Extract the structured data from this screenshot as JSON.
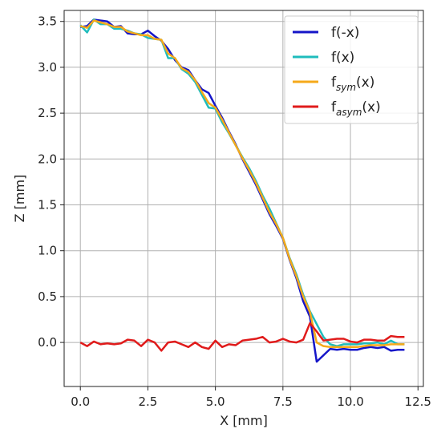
{
  "chart_data": {
    "type": "line",
    "title": "",
    "xlabel": "X [mm]",
    "ylabel": "Z [mm]",
    "xlim": [
      -0.6,
      12.7
    ],
    "ylim": [
      -0.48,
      3.62
    ],
    "xticks": [
      0.0,
      2.5,
      5.0,
      7.5,
      10.0,
      12.5
    ],
    "xtick_labels": [
      "0.0",
      "2.5",
      "5.0",
      "7.5",
      "10.0",
      "12.5"
    ],
    "yticks": [
      0.0,
      0.5,
      1.0,
      1.5,
      2.0,
      2.5,
      3.0,
      3.5
    ],
    "ytick_labels": [
      "0.0",
      "0.5",
      "1.0",
      "1.5",
      "2.0",
      "2.5",
      "3.0",
      "3.5"
    ],
    "grid": true,
    "legend_position": "top-right",
    "colors": {
      "f_minus_x": "#1515c8",
      "f_x": "#1fbcbc",
      "f_sym": "#f5a91a",
      "f_asym": "#e01b1b"
    },
    "legend": [
      {
        "key": "f_minus_x",
        "base": "f(-x)",
        "sub": "",
        "tail": ""
      },
      {
        "key": "f_x",
        "base": "f(x)",
        "sub": "",
        "tail": ""
      },
      {
        "key": "f_sym",
        "base": "f",
        "sub": "sym",
        "tail": "(x)"
      },
      {
        "key": "f_asym",
        "base": "f",
        "sub": "asym",
        "tail": "(x)"
      }
    ],
    "x": [
      0.0,
      0.25,
      0.5,
      0.75,
      1.0,
      1.25,
      1.5,
      1.75,
      2.0,
      2.25,
      2.5,
      2.75,
      3.0,
      3.25,
      3.5,
      3.75,
      4.0,
      4.25,
      4.5,
      4.75,
      5.0,
      5.25,
      5.5,
      5.75,
      6.0,
      6.25,
      6.5,
      6.75,
      7.0,
      7.25,
      7.5,
      7.75,
      8.0,
      8.25,
      8.5,
      8.75,
      9.0,
      9.25,
      9.5,
      9.75,
      10.0,
      10.25,
      10.5,
      10.75,
      11.0,
      11.25,
      11.5,
      11.75,
      12.0
    ],
    "series": [
      {
        "key": "f_minus_x",
        "values": [
          3.44,
          3.45,
          3.52,
          3.51,
          3.5,
          3.44,
          3.45,
          3.37,
          3.36,
          3.36,
          3.4,
          3.34,
          3.29,
          3.2,
          3.08,
          3.0,
          2.97,
          2.86,
          2.76,
          2.72,
          2.58,
          2.45,
          2.3,
          2.16,
          2.0,
          1.86,
          1.72,
          1.56,
          1.4,
          1.27,
          1.13,
          0.9,
          0.7,
          0.45,
          0.28,
          -0.21,
          -0.14,
          -0.07,
          -0.08,
          -0.07,
          -0.08,
          -0.08,
          -0.06,
          -0.05,
          -0.06,
          -0.05,
          -0.09,
          -0.08,
          -0.08
        ]
      },
      {
        "key": "f_x",
        "values": [
          3.46,
          3.38,
          3.52,
          3.47,
          3.47,
          3.42,
          3.42,
          3.4,
          3.37,
          3.36,
          3.32,
          3.31,
          3.3,
          3.1,
          3.1,
          2.98,
          2.93,
          2.84,
          2.7,
          2.56,
          2.55,
          2.4,
          2.28,
          2.15,
          2.02,
          1.9,
          1.76,
          1.6,
          1.46,
          1.3,
          1.14,
          0.92,
          0.74,
          0.52,
          0.34,
          0.2,
          0.06,
          -0.02,
          -0.04,
          -0.02,
          -0.02,
          -0.02,
          -0.01,
          -0.01,
          0.0,
          -0.02,
          0.02,
          -0.02,
          -0.02
        ]
      },
      {
        "key": "f_sym",
        "values": [
          3.45,
          3.43,
          3.51,
          3.49,
          3.47,
          3.44,
          3.44,
          3.39,
          3.37,
          3.35,
          3.35,
          3.31,
          3.3,
          3.15,
          3.1,
          2.99,
          2.95,
          2.86,
          2.73,
          2.61,
          2.56,
          2.43,
          2.29,
          2.15,
          2.01,
          1.88,
          1.74,
          1.58,
          1.42,
          1.29,
          1.14,
          0.91,
          0.72,
          0.5,
          0.33,
          0.0,
          -0.04,
          -0.05,
          -0.05,
          -0.05,
          -0.05,
          -0.05,
          -0.04,
          -0.03,
          -0.03,
          -0.03,
          -0.02,
          -0.02,
          -0.02
        ]
      },
      {
        "key": "f_asym",
        "values": [
          0.0,
          -0.04,
          0.01,
          -0.02,
          -0.01,
          -0.02,
          -0.01,
          0.03,
          0.02,
          -0.04,
          0.03,
          0.0,
          -0.09,
          0.0,
          0.01,
          -0.02,
          -0.05,
          0.0,
          -0.05,
          -0.07,
          0.02,
          -0.05,
          -0.02,
          -0.03,
          0.02,
          0.03,
          0.04,
          0.06,
          0.0,
          0.01,
          0.04,
          0.01,
          0.0,
          0.03,
          0.21,
          0.12,
          0.02,
          0.03,
          0.04,
          0.04,
          0.01,
          0.0,
          0.03,
          0.03,
          0.02,
          0.02,
          0.07,
          0.06,
          0.06
        ]
      }
    ]
  }
}
